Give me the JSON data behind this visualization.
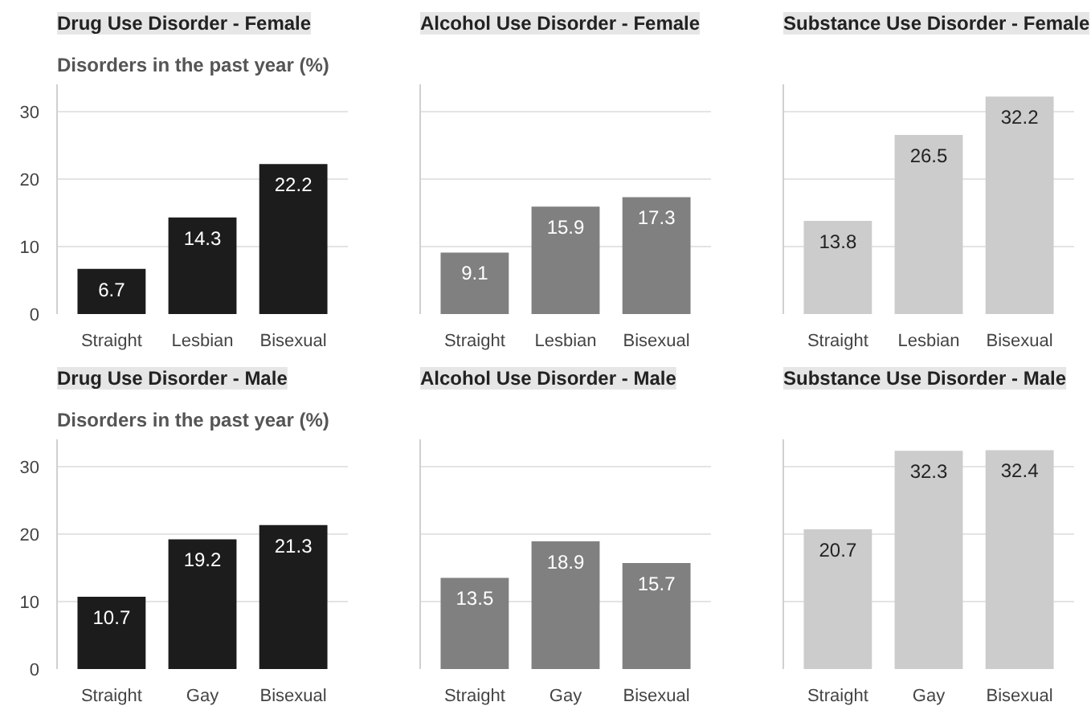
{
  "chart_data": [
    {
      "type": "bar",
      "title": "Drug Use Disorder - Female",
      "ylabel": "Disorders in the past year (%)",
      "categories": [
        "Straight",
        "Lesbian",
        "Bisexual"
      ],
      "values": [
        6.7,
        14.3,
        22.2
      ],
      "color": "#1c1c1c",
      "ylim": [
        0,
        34
      ],
      "yticks": [
        0,
        10,
        20,
        30
      ],
      "grid": "y",
      "data_labels": true
    },
    {
      "type": "bar",
      "title": "Alcohol Use Disorder - Female",
      "categories": [
        "Straight",
        "Lesbian",
        "Bisexual"
      ],
      "values": [
        9.1,
        15.9,
        17.3
      ],
      "color": "#808080",
      "ylim": [
        0,
        34
      ],
      "yticks": [
        0,
        10,
        20,
        30
      ],
      "grid": "y",
      "data_labels": true,
      "tick_labels": "x"
    },
    {
      "type": "bar",
      "title": "Substance Use Disorder - Female",
      "categories": [
        "Straight",
        "Lesbian",
        "Bisexual"
      ],
      "values": [
        13.8,
        26.5,
        32.2
      ],
      "color": "#cccccc",
      "ylim": [
        0,
        34
      ],
      "yticks": [
        0,
        10,
        20,
        30
      ],
      "grid": "y",
      "data_labels": true,
      "tick_labels": "x"
    },
    {
      "type": "bar",
      "title": "Drug Use Disorder - Male",
      "ylabel": "Disorders in the past year (%)",
      "categories": [
        "Straight",
        "Gay",
        "Bisexual"
      ],
      "values": [
        10.7,
        19.2,
        21.3
      ],
      "color": "#1c1c1c",
      "ylim": [
        0,
        34
      ],
      "yticks": [
        0,
        10,
        20,
        30
      ],
      "grid": "y",
      "data_labels": true
    },
    {
      "type": "bar",
      "title": "Alcohol Use Disorder - Male",
      "categories": [
        "Straight",
        "Gay",
        "Bisexual"
      ],
      "values": [
        13.5,
        18.9,
        15.7
      ],
      "color": "#808080",
      "ylim": [
        0,
        34
      ],
      "yticks": [
        0,
        10,
        20,
        30
      ],
      "grid": "y",
      "data_labels": true,
      "tick_labels": "x"
    },
    {
      "type": "bar",
      "title": "Substance Use Disorder - Male",
      "categories": [
        "Straight",
        "Gay",
        "Bisexual"
      ],
      "values": [
        20.7,
        32.3,
        32.4
      ],
      "color": "#cccccc",
      "ylim": [
        0,
        34
      ],
      "yticks": [
        0,
        10,
        20,
        30
      ],
      "grid": "y",
      "data_labels": true,
      "tick_labels": "x"
    }
  ]
}
